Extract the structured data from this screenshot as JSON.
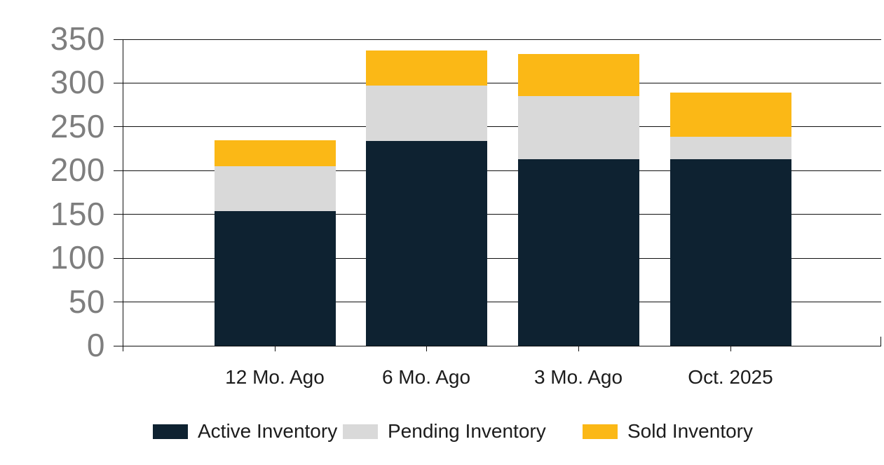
{
  "chart_data": {
    "type": "bar",
    "stacked": true,
    "title": "",
    "xlabel": "",
    "ylabel": "",
    "categories": [
      "12 Mo. Ago",
      "6 Mo. Ago",
      "3 Mo. Ago",
      "Oct. 2025"
    ],
    "series": [
      {
        "name": "Active Inventory",
        "color": "#0e2231",
        "values": [
          154,
          234,
          213,
          213
        ]
      },
      {
        "name": "Pending Inventory",
        "color": "#d9d9d9",
        "values": [
          51,
          63,
          72,
          26
        ]
      },
      {
        "name": "Sold Inventory",
        "color": "#fbb816",
        "values": [
          30,
          40,
          48,
          50
        ]
      }
    ],
    "stack_totals": [
      235,
      337,
      333,
      289
    ],
    "ylim": [
      0,
      350
    ],
    "yticks": [
      0,
      50,
      100,
      150,
      200,
      250,
      300,
      350
    ],
    "grid": true,
    "legend_position": "bottom"
  },
  "colors": {
    "background": "#ffffff",
    "grid_line": "#111111",
    "y_tick_label": "#7e7e7e",
    "x_tick_label": "#1c1c1c",
    "legend_text": "#1c1c1c"
  }
}
